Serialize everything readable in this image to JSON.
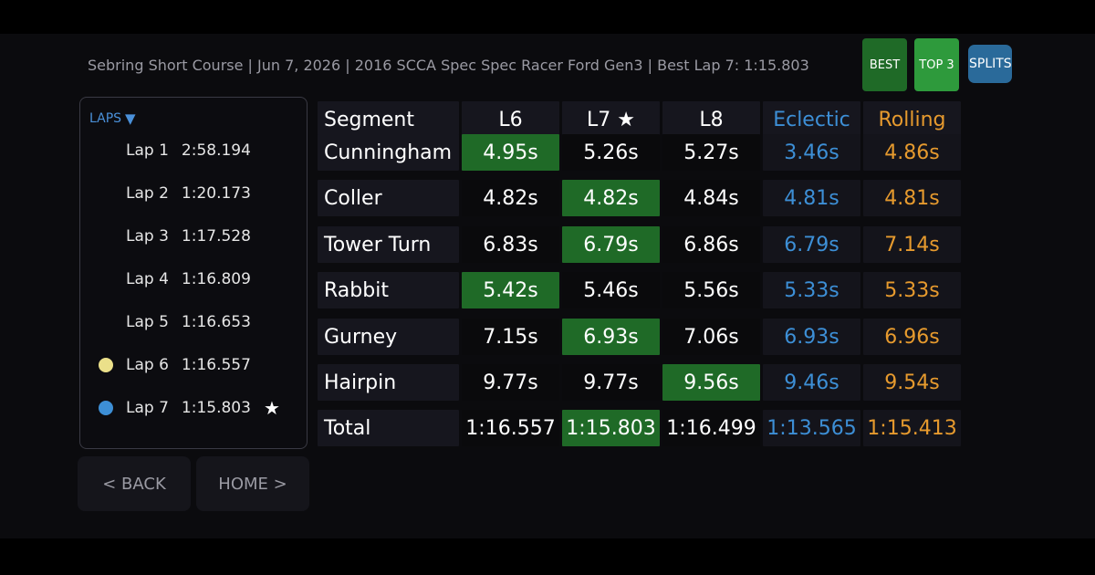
{
  "header": {
    "info": "Sebring Short Course  |  Jun 7, 2026  |  2016 SCCA Spec Spec Racer Ford Gen3  |  Best Lap 7: 1:15.803",
    "buttons": {
      "best": "BEST",
      "top3": "TOP 3",
      "splits": "SPLITS"
    },
    "colors": {
      "best": "#1f6a27",
      "top3": "#2e9a3c",
      "splits": "#2a6a9a"
    }
  },
  "laps_panel": {
    "title": "LAPS",
    "title_icon": "triangle-down-icon",
    "items": [
      {
        "label": "Lap 1",
        "time": "2:58.194",
        "dot": ""
      },
      {
        "label": "Lap 2",
        "time": "1:20.173",
        "dot": ""
      },
      {
        "label": "Lap 3",
        "time": "1:17.528",
        "dot": ""
      },
      {
        "label": "Lap 4",
        "time": "1:16.809",
        "dot": ""
      },
      {
        "label": "Lap 5",
        "time": "1:16.653",
        "dot": ""
      },
      {
        "label": "Lap 6",
        "time": "1:16.557",
        "dot": "#ebe08a"
      },
      {
        "label": "Lap 7",
        "time": "1:15.803",
        "dot": "#3d8fd6",
        "star": "★"
      }
    ]
  },
  "nav": {
    "back": "< BACK",
    "home": "HOME >"
  },
  "table": {
    "headers": [
      "Segment",
      "L6",
      "L7 ★",
      "L8",
      "Eclectic",
      "Rolling"
    ],
    "rows": [
      {
        "segment": "Cunningham",
        "values": [
          "4.95s",
          "5.26s",
          "5.27s"
        ],
        "best": 0,
        "eclectic": "3.46s",
        "rolling": "4.86s"
      },
      {
        "segment": "Coller",
        "values": [
          "4.82s",
          "4.82s",
          "4.84s"
        ],
        "best": 1,
        "eclectic": "4.81s",
        "rolling": "4.81s"
      },
      {
        "segment": "Tower Turn",
        "values": [
          "6.83s",
          "6.79s",
          "6.86s"
        ],
        "best": 1,
        "eclectic": "6.79s",
        "rolling": "7.14s"
      },
      {
        "segment": "Rabbit",
        "values": [
          "5.42s",
          "5.46s",
          "5.56s"
        ],
        "best": 0,
        "eclectic": "5.33s",
        "rolling": "5.33s"
      },
      {
        "segment": "Gurney",
        "values": [
          "7.15s",
          "6.93s",
          "7.06s"
        ],
        "best": 1,
        "eclectic": "6.93s",
        "rolling": "6.96s"
      },
      {
        "segment": "Hairpin",
        "values": [
          "9.77s",
          "9.77s",
          "9.56s"
        ],
        "best": 2,
        "eclectic": "9.46s",
        "rolling": "9.54s"
      },
      {
        "segment": "Total",
        "values": [
          "1:16.557",
          "1:15.803",
          "1:16.499"
        ],
        "best": 1,
        "eclectic": "1:13.565",
        "rolling": "1:15.413"
      }
    ],
    "colors": {
      "best_fill": "#1f6a27",
      "eclectic": "#3d8fd6",
      "rolling": "#e69a2e"
    }
  }
}
